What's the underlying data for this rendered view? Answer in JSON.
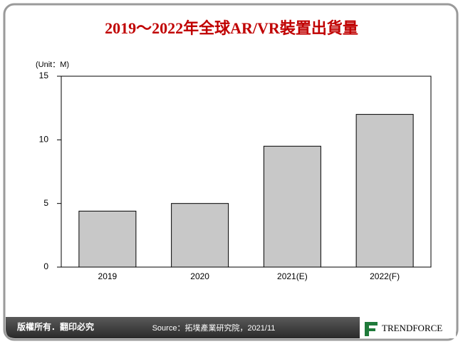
{
  "chart_data": {
    "type": "bar",
    "title": "2019～2022年全球AR/VR裝置出貨量",
    "y_axis_label": "(Unit：M)",
    "categories": [
      "2019",
      "2020",
      "2021(E)",
      "2022(F)"
    ],
    "values": [
      4.4,
      5.0,
      9.5,
      12.0
    ],
    "color": "#c8c8c8",
    "ylim": [
      0,
      15
    ],
    "yticks": [
      0,
      5,
      10,
      15
    ],
    "grid": false
  },
  "footer": {
    "copyright": "版權所有．翻印必究",
    "source": "Source：拓墣產業研究院，2021/11",
    "logo": "TRENDFORCE"
  }
}
